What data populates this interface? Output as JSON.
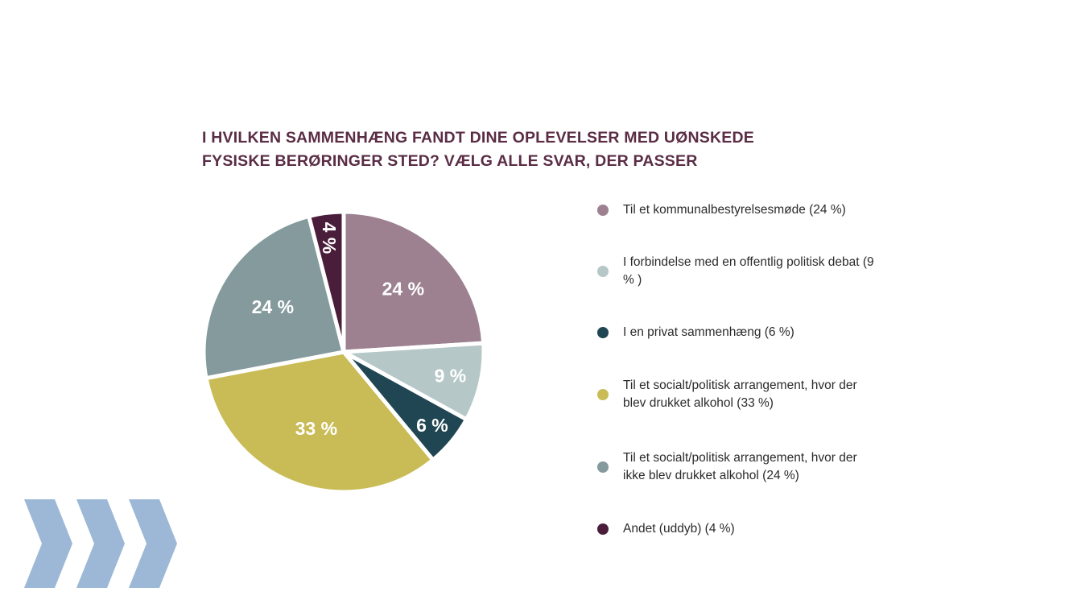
{
  "chart_data": {
    "type": "pie",
    "title_lines": [
      "I HVILKEN SAMMENHÆNG FANDT DINE OPLEVELSER MED UØNSKEDE",
      "FYSISKE BERØRINGER STED? VÆLG ALLE SVAR, DER PASSER"
    ],
    "slices": [
      {
        "name": "Til et kommunalbestyrelsesmøde (24 %)",
        "value": 24,
        "label": "24 %",
        "color": "#9d8190",
        "label_color": "#ffffff"
      },
      {
        "name": "I forbindelse med en offentlig politisk debat (9 % )",
        "value": 9,
        "label": "9 %",
        "color": "#b5c7c7",
        "label_color": "#ffffff"
      },
      {
        "name": "I en privat sammenhæng (6 %)",
        "value": 6,
        "label": "6 %",
        "color": "#1f4652",
        "label_color": "#ffffff"
      },
      {
        "name": "Til et socialt/politisk arrangement, hvor der blev drukket alkohol (33 %)",
        "value": 33,
        "label": "33 %",
        "color": "#c9bc56",
        "label_color": "#ffffff"
      },
      {
        "name": "Til et socialt/politisk arrangement, hvor der ikke blev drukket alkohol (24 %)",
        "value": 24,
        "label": "24 %",
        "color": "#849a9c",
        "label_color": "#ffffff"
      },
      {
        "name": "Andet (uddyb) (4 %)",
        "value": 4,
        "label": "4 %",
        "color": "#4a1e3a",
        "label_color": "#ffffff"
      }
    ],
    "legend_placement": "right"
  },
  "decoration": {
    "chevron_color": "#9db8d6",
    "chevron_icon": "chevron-right-icon"
  }
}
